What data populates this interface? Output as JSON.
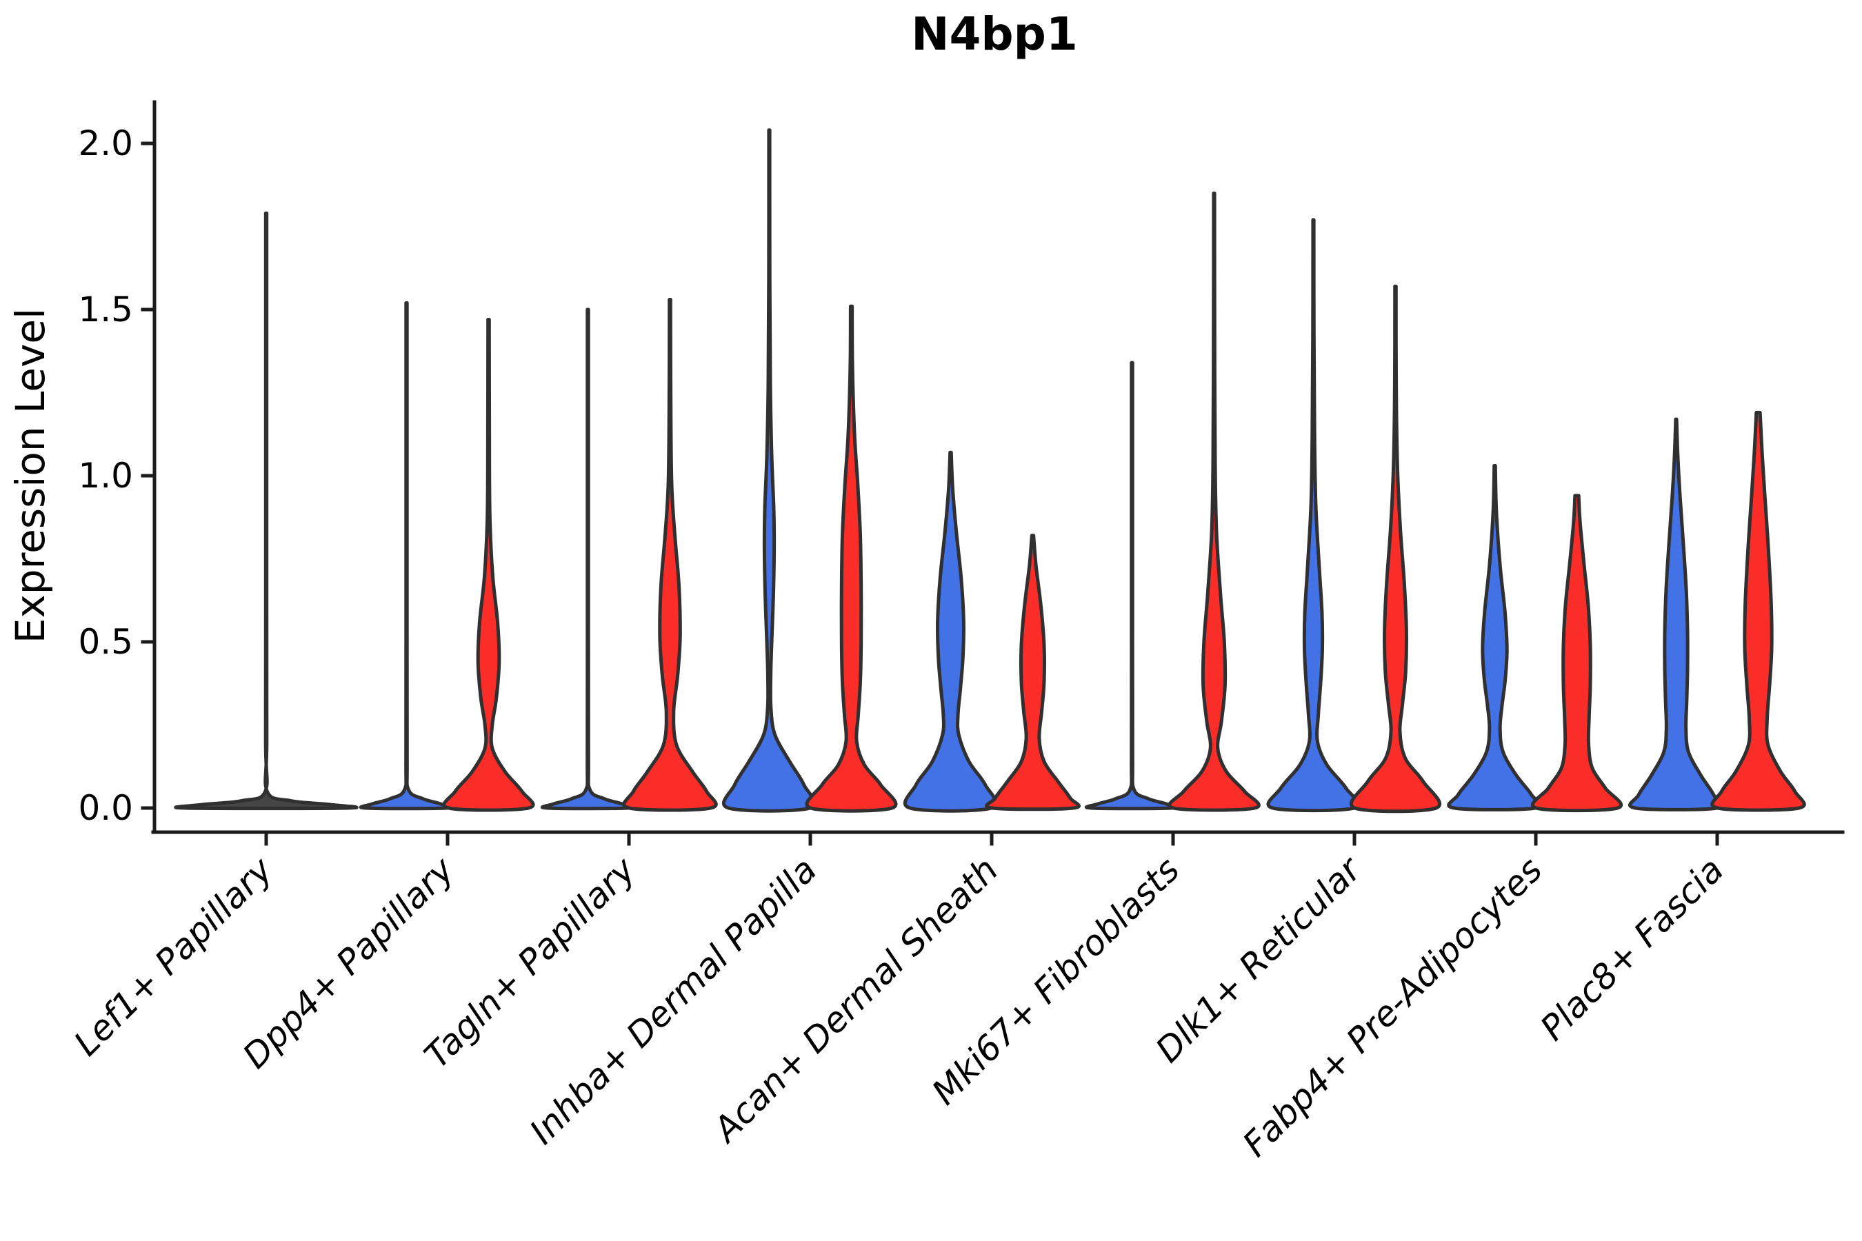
{
  "title": "N4bp1",
  "y_axis": {
    "label": "Expression Level",
    "ticks": [
      "0.0",
      "0.5",
      "1.0",
      "1.5",
      "2.0"
    ],
    "tick_values": [
      0.0,
      0.5,
      1.0,
      1.5,
      2.0
    ]
  },
  "colors": {
    "blue": "#4371E6",
    "red": "#FA2D28",
    "single": "#454545",
    "edge": "#303030",
    "axis": "#1b1b1b"
  },
  "chart_data": {
    "type": "violin",
    "title": "N4bp1",
    "xlabel": "",
    "ylabel": "Expression Level",
    "ylim": [
      -0.07,
      2.12
    ],
    "grid": false,
    "legend": "none",
    "series": [
      {
        "id": "blue",
        "side": "left"
      },
      {
        "id": "red",
        "side": "right"
      }
    ],
    "categories": [
      "Lef1+ Papillary",
      "Dpp4+ Papillary",
      "Tagln+ Papillary",
      "Inhba+ Dermal Papilla",
      "Acan+ Dermal Sheath",
      "Mki67+ Fibroblasts",
      "Dlk1+ Reticular",
      "Fabp4+ Pre-Adipocytes",
      "Plac8+ Fascia"
    ],
    "violins": [
      {
        "category": "Lef1+ Papillary",
        "parts": [
          {
            "group": "single",
            "side": "center",
            "max_expression": 1.79,
            "profile": [
              [
                1.79,
                0.006
              ],
              [
                1.3,
                0.006
              ],
              [
                0.7,
                0.006
              ],
              [
                0.2,
                0.007
              ],
              [
                0.05,
                0.012
              ],
              [
                0.022,
                0.3
              ],
              [
                0.01,
                0.8
              ],
              [
                0,
                1.0
              ]
            ]
          }
        ]
      },
      {
        "category": "Dpp4+ Papillary",
        "parts": [
          {
            "group": "blue",
            "side": "left",
            "max_expression": 1.52,
            "profile": [
              [
                1.52,
                0.012
              ],
              [
                1.2,
                0.012
              ],
              [
                0.6,
                0.012
              ],
              [
                0.15,
                0.014
              ],
              [
                0.055,
                0.05
              ],
              [
                0.028,
                0.4
              ],
              [
                0.012,
                0.85
              ],
              [
                0,
                1.0
              ]
            ]
          },
          {
            "group": "red",
            "side": "right",
            "max_expression": 1.47,
            "profile": [
              [
                1.47,
                0.014
              ],
              [
                1.15,
                0.018
              ],
              [
                0.88,
                0.03
              ],
              [
                0.7,
                0.1
              ],
              [
                0.56,
                0.22
              ],
              [
                0.44,
                0.26
              ],
              [
                0.33,
                0.19
              ],
              [
                0.25,
                0.09
              ],
              [
                0.18,
                0.09
              ],
              [
                0.11,
                0.4
              ],
              [
                0.05,
                0.82
              ],
              [
                0,
                0.98
              ]
            ]
          }
        ]
      },
      {
        "category": "Tagln+ Papillary",
        "parts": [
          {
            "group": "blue",
            "side": "left",
            "max_expression": 1.5,
            "profile": [
              [
                1.5,
                0.012
              ],
              [
                1.18,
                0.012
              ],
              [
                0.6,
                0.012
              ],
              [
                0.15,
                0.014
              ],
              [
                0.055,
                0.05
              ],
              [
                0.028,
                0.4
              ],
              [
                0.012,
                0.85
              ],
              [
                0,
                1.0
              ]
            ]
          },
          {
            "group": "red",
            "side": "right",
            "max_expression": 1.53,
            "profile": [
              [
                1.53,
                0.014
              ],
              [
                1.25,
                0.018
              ],
              [
                0.98,
                0.04
              ],
              [
                0.82,
                0.12
              ],
              [
                0.67,
                0.22
              ],
              [
                0.52,
                0.25
              ],
              [
                0.4,
                0.19
              ],
              [
                0.29,
                0.09
              ],
              [
                0.19,
                0.16
              ],
              [
                0.11,
                0.55
              ],
              [
                0.05,
                0.9
              ],
              [
                0,
                1.0
              ]
            ]
          }
        ]
      },
      {
        "category": "Inhba+ Dermal Papilla",
        "parts": [
          {
            "group": "blue",
            "side": "left",
            "max_expression": 2.04,
            "profile": [
              [
                2.04,
                0.01
              ],
              [
                1.6,
                0.012
              ],
              [
                1.28,
                0.025
              ],
              [
                1.06,
                0.06
              ],
              [
                0.9,
                0.11
              ],
              [
                0.78,
                0.12
              ],
              [
                0.64,
                0.1
              ],
              [
                0.5,
                0.06
              ],
              [
                0.4,
                0.035
              ],
              [
                0.3,
                0.04
              ],
              [
                0.22,
                0.14
              ],
              [
                0.14,
                0.5
              ],
              [
                0.07,
                0.85
              ],
              [
                0,
                1.0
              ]
            ]
          },
          {
            "group": "red",
            "side": "right",
            "max_expression": 1.51,
            "profile": [
              [
                1.51,
                0.018
              ],
              [
                1.32,
                0.028
              ],
              [
                1.12,
                0.08
              ],
              [
                0.97,
                0.16
              ],
              [
                0.82,
                0.22
              ],
              [
                0.66,
                0.24
              ],
              [
                0.5,
                0.24
              ],
              [
                0.38,
                0.22
              ],
              [
                0.28,
                0.17
              ],
              [
                0.2,
                0.13
              ],
              [
                0.13,
                0.32
              ],
              [
                0.07,
                0.72
              ],
              [
                0,
                1.0
              ]
            ]
          }
        ]
      },
      {
        "category": "Acan+ Dermal Sheath",
        "parts": [
          {
            "group": "blue",
            "side": "left",
            "max_expression": 1.07,
            "profile": [
              [
                1.07,
                0.013
              ],
              [
                0.96,
                0.05
              ],
              [
                0.83,
                0.14
              ],
              [
                0.69,
                0.26
              ],
              [
                0.56,
                0.32
              ],
              [
                0.45,
                0.3
              ],
              [
                0.36,
                0.24
              ],
              [
                0.28,
                0.18
              ],
              [
                0.22,
                0.2
              ],
              [
                0.14,
                0.45
              ],
              [
                0.07,
                0.85
              ],
              [
                0,
                1.0
              ]
            ]
          },
          {
            "group": "red",
            "side": "right",
            "max_expression": 0.82,
            "profile": [
              [
                0.82,
                0.02
              ],
              [
                0.73,
                0.08
              ],
              [
                0.61,
                0.2
              ],
              [
                0.49,
                0.28
              ],
              [
                0.38,
                0.28
              ],
              [
                0.29,
                0.22
              ],
              [
                0.21,
                0.16
              ],
              [
                0.14,
                0.28
              ],
              [
                0.08,
                0.62
              ],
              [
                0.03,
                0.92
              ],
              [
                0,
                1.0
              ]
            ]
          }
        ]
      },
      {
        "category": "Mki67+ Fibroblasts",
        "parts": [
          {
            "group": "blue",
            "side": "left",
            "max_expression": 1.34,
            "profile": [
              [
                1.34,
                0.012
              ],
              [
                1.05,
                0.012
              ],
              [
                0.55,
                0.012
              ],
              [
                0.15,
                0.014
              ],
              [
                0.055,
                0.05
              ],
              [
                0.028,
                0.4
              ],
              [
                0.012,
                0.85
              ],
              [
                0,
                1.0
              ]
            ]
          },
          {
            "group": "red",
            "side": "right",
            "max_expression": 1.85,
            "profile": [
              [
                1.85,
                0.01
              ],
              [
                1.45,
                0.013
              ],
              [
                1.05,
                0.025
              ],
              [
                0.83,
                0.06
              ],
              [
                0.64,
                0.16
              ],
              [
                0.5,
                0.25
              ],
              [
                0.37,
                0.27
              ],
              [
                0.26,
                0.18
              ],
              [
                0.18,
                0.09
              ],
              [
                0.11,
                0.3
              ],
              [
                0.05,
                0.75
              ],
              [
                0,
                1.0
              ]
            ]
          }
        ]
      },
      {
        "category": "Dlk1+ Reticular",
        "parts": [
          {
            "group": "blue",
            "side": "left",
            "max_expression": 1.77,
            "profile": [
              [
                1.77,
                0.01
              ],
              [
                1.42,
                0.013
              ],
              [
                1.12,
                0.028
              ],
              [
                0.91,
                0.06
              ],
              [
                0.73,
                0.14
              ],
              [
                0.59,
                0.21
              ],
              [
                0.48,
                0.22
              ],
              [
                0.38,
                0.18
              ],
              [
                0.28,
                0.12
              ],
              [
                0.2,
                0.1
              ],
              [
                0.13,
                0.33
              ],
              [
                0.06,
                0.8
              ],
              [
                0,
                1.0
              ]
            ]
          },
          {
            "group": "red",
            "side": "right",
            "max_expression": 1.57,
            "profile": [
              [
                1.57,
                0.013
              ],
              [
                1.27,
                0.018
              ],
              [
                1.02,
                0.05
              ],
              [
                0.84,
                0.12
              ],
              [
                0.67,
                0.22
              ],
              [
                0.53,
                0.27
              ],
              [
                0.41,
                0.25
              ],
              [
                0.31,
                0.17
              ],
              [
                0.23,
                0.11
              ],
              [
                0.15,
                0.24
              ],
              [
                0.08,
                0.68
              ],
              [
                0,
                1.0
              ]
            ]
          }
        ]
      },
      {
        "category": "Fabp4+ Pre-Adipocytes",
        "parts": [
          {
            "group": "blue",
            "side": "left",
            "max_expression": 1.03,
            "profile": [
              [
                1.03,
                0.013
              ],
              [
                0.89,
                0.04
              ],
              [
                0.73,
                0.13
              ],
              [
                0.59,
                0.25
              ],
              [
                0.48,
                0.3
              ],
              [
                0.39,
                0.26
              ],
              [
                0.31,
                0.18
              ],
              [
                0.24,
                0.13
              ],
              [
                0.17,
                0.2
              ],
              [
                0.1,
                0.52
              ],
              [
                0.04,
                0.9
              ],
              [
                0,
                1.0
              ]
            ]
          },
          {
            "group": "red",
            "side": "right",
            "max_expression": 0.94,
            "profile": [
              [
                0.94,
                0.045
              ],
              [
                0.86,
                0.08
              ],
              [
                0.73,
                0.18
              ],
              [
                0.61,
                0.28
              ],
              [
                0.49,
                0.33
              ],
              [
                0.37,
                0.33
              ],
              [
                0.27,
                0.3
              ],
              [
                0.19,
                0.29
              ],
              [
                0.12,
                0.38
              ],
              [
                0.06,
                0.7
              ],
              [
                0,
                1.0
              ]
            ]
          }
        ]
      },
      {
        "category": "Plac8+ Fascia",
        "parts": [
          {
            "group": "blue",
            "side": "left",
            "max_expression": 1.17,
            "profile": [
              [
                1.17,
                0.01
              ],
              [
                1.06,
                0.04
              ],
              [
                0.93,
                0.1
              ],
              [
                0.79,
                0.18
              ],
              [
                0.65,
                0.25
              ],
              [
                0.53,
                0.28
              ],
              [
                0.42,
                0.28
              ],
              [
                0.32,
                0.26
              ],
              [
                0.24,
                0.24
              ],
              [
                0.17,
                0.3
              ],
              [
                0.1,
                0.6
              ],
              [
                0.04,
                0.92
              ],
              [
                0,
                1.0
              ]
            ]
          },
          {
            "group": "red",
            "side": "right",
            "max_expression": 1.19,
            "profile": [
              [
                1.19,
                0.045
              ],
              [
                1.06,
                0.1
              ],
              [
                0.91,
                0.18
              ],
              [
                0.76,
                0.26
              ],
              [
                0.61,
                0.32
              ],
              [
                0.48,
                0.33
              ],
              [
                0.37,
                0.28
              ],
              [
                0.27,
                0.22
              ],
              [
                0.19,
                0.24
              ],
              [
                0.11,
                0.55
              ],
              [
                0.05,
                0.9
              ],
              [
                0,
                1.0
              ]
            ]
          }
        ]
      }
    ]
  }
}
